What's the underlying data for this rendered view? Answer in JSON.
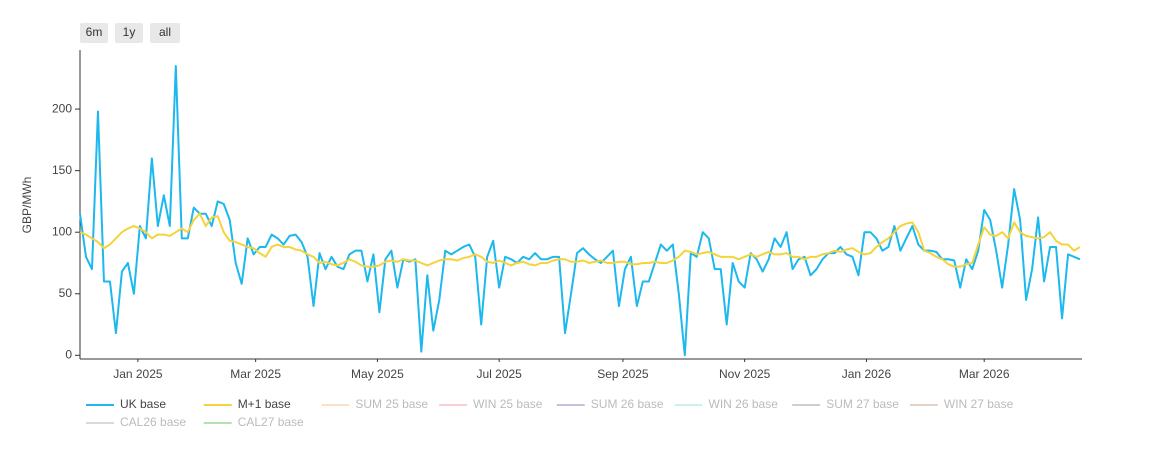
{
  "chart_data": {
    "type": "line",
    "range_buttons": [
      "6m",
      "1y",
      "all"
    ],
    "ylabel": "GBP/MWh",
    "xlim": [
      "2024-12-03",
      "2026-04-19"
    ],
    "xticks": [
      {
        "value": "2025-01-01",
        "label": "Jan 2025"
      },
      {
        "value": "2025-03-01",
        "label": "Mar 2025"
      },
      {
        "value": "2025-05-01",
        "label": "May 2025"
      },
      {
        "value": "2025-07-01",
        "label": "Jul 2025"
      },
      {
        "value": "2025-09-01",
        "label": "Sep 2025"
      },
      {
        "value": "2025-11-01",
        "label": "Nov 2025"
      },
      {
        "value": "2026-01-01",
        "label": "Jan 2026"
      },
      {
        "value": "2026-03-01",
        "label": "Mar 2026"
      }
    ],
    "ylim": [
      -3,
      248
    ],
    "yticks": [
      0,
      50,
      100,
      150,
      200
    ],
    "grid": false,
    "legend": "bottom",
    "x": [
      "2024-12-03",
      "2024-12-06",
      "2024-12-09",
      "2024-12-12",
      "2024-12-15",
      "2024-12-18",
      "2024-12-21",
      "2024-12-24",
      "2024-12-27",
      "2024-12-30",
      "2025-01-02",
      "2025-01-05",
      "2025-01-08",
      "2025-01-11",
      "2025-01-14",
      "2025-01-17",
      "2025-01-20",
      "2025-01-23",
      "2025-01-26",
      "2025-01-29",
      "2025-02-01",
      "2025-02-04",
      "2025-02-07",
      "2025-02-10",
      "2025-02-13",
      "2025-02-16",
      "2025-02-19",
      "2025-02-22",
      "2025-02-25",
      "2025-02-28",
      "2025-03-03",
      "2025-03-06",
      "2025-03-09",
      "2025-03-12",
      "2025-03-15",
      "2025-03-18",
      "2025-03-21",
      "2025-03-24",
      "2025-03-27",
      "2025-03-30",
      "2025-04-02",
      "2025-04-05",
      "2025-04-08",
      "2025-04-11",
      "2025-04-14",
      "2025-04-17",
      "2025-04-20",
      "2025-04-23",
      "2025-04-26",
      "2025-04-29",
      "2025-05-02",
      "2025-05-05",
      "2025-05-08",
      "2025-05-11",
      "2025-05-14",
      "2025-05-17",
      "2025-05-20",
      "2025-05-23",
      "2025-05-26",
      "2025-05-29",
      "2025-06-01",
      "2025-06-04",
      "2025-06-07",
      "2025-06-10",
      "2025-06-13",
      "2025-06-16",
      "2025-06-19",
      "2025-06-22",
      "2025-06-25",
      "2025-06-28",
      "2025-07-01",
      "2025-07-04",
      "2025-07-07",
      "2025-07-10",
      "2025-07-13",
      "2025-07-16",
      "2025-07-19",
      "2025-07-22",
      "2025-07-25",
      "2025-07-28",
      "2025-07-31",
      "2025-08-03",
      "2025-08-06",
      "2025-08-09",
      "2025-08-12",
      "2025-08-15",
      "2025-08-18",
      "2025-08-21",
      "2025-08-24",
      "2025-08-27",
      "2025-08-30",
      "2025-09-02",
      "2025-09-05",
      "2025-09-08",
      "2025-09-11",
      "2025-09-14",
      "2025-09-17",
      "2025-09-20",
      "2025-09-23",
      "2025-09-26",
      "2025-09-29",
      "2025-10-02",
      "2025-10-05",
      "2025-10-08",
      "2025-10-11",
      "2025-10-14",
      "2025-10-17",
      "2025-10-20",
      "2025-10-23",
      "2025-10-26",
      "2025-10-29",
      "2025-11-01",
      "2025-11-04",
      "2025-11-07",
      "2025-11-10",
      "2025-11-13",
      "2025-11-16",
      "2025-11-19",
      "2025-11-22",
      "2025-11-25",
      "2025-11-28",
      "2025-12-01",
      "2025-12-04",
      "2025-12-07",
      "2025-12-10",
      "2025-12-13",
      "2025-12-16",
      "2025-12-19",
      "2025-12-22",
      "2025-12-25",
      "2025-12-28",
      "2025-12-31",
      "2026-01-03",
      "2026-01-06",
      "2026-01-09",
      "2026-01-12",
      "2026-01-15",
      "2026-01-18",
      "2026-01-21",
      "2026-01-24",
      "2026-01-27",
      "2026-01-30",
      "2026-02-02",
      "2026-02-05",
      "2026-02-08",
      "2026-02-11",
      "2026-02-14",
      "2026-02-17",
      "2026-02-20",
      "2026-02-23",
      "2026-02-26",
      "2026-03-01",
      "2026-03-04",
      "2026-03-07",
      "2026-03-10",
      "2026-03-13",
      "2026-03-16",
      "2026-03-19",
      "2026-03-22",
      "2026-03-25",
      "2026-03-28",
      "2026-03-31",
      "2026-04-03",
      "2026-04-06",
      "2026-04-09",
      "2026-04-12",
      "2026-04-15",
      "2026-04-18"
    ],
    "series": [
      {
        "name": "UK base",
        "color": "#1cb8ee",
        "values": [
          115,
          80,
          70,
          198,
          60,
          60,
          18,
          68,
          75,
          50,
          105,
          95,
          160,
          105,
          130,
          105,
          235,
          95,
          95,
          120,
          115,
          115,
          105,
          125,
          123,
          110,
          75,
          58,
          95,
          82,
          88,
          88,
          98,
          95,
          90,
          97,
          98,
          92,
          80,
          40,
          83,
          70,
          80,
          72,
          70,
          82,
          85,
          85,
          60,
          82,
          35,
          78,
          85,
          55,
          78,
          76,
          78,
          3,
          65,
          20,
          45,
          85,
          82,
          85,
          88,
          90,
          80,
          25,
          80,
          93,
          55,
          80,
          78,
          75,
          80,
          78,
          83,
          78,
          78,
          80,
          80,
          18,
          50,
          83,
          87,
          82,
          78,
          75,
          80,
          85,
          40,
          70,
          80,
          40,
          60,
          60,
          75,
          90,
          85,
          90,
          50,
          0,
          83,
          80,
          100,
          95,
          70,
          70,
          25,
          75,
          60,
          55,
          83,
          78,
          68,
          78,
          95,
          88,
          100,
          70,
          78,
          80,
          65,
          70,
          78,
          83,
          83,
          88,
          82,
          80,
          65,
          100,
          100,
          95,
          85,
          88,
          105,
          85,
          95,
          105,
          90,
          85,
          85,
          84,
          78,
          78,
          77,
          55,
          78,
          70,
          85,
          118,
          110,
          85,
          55,
          90,
          135,
          110,
          45,
          70,
          112,
          60,
          88,
          88,
          30,
          82,
          80,
          78
        ]
      },
      {
        "name": "M+1 base",
        "color": "#f5d33c",
        "values": [
          100,
          98,
          95,
          92,
          87,
          90,
          95,
          100,
          103,
          105,
          103,
          100,
          95,
          98,
          98,
          97,
          100,
          103,
          100,
          110,
          115,
          105,
          112,
          113,
          100,
          93,
          92,
          90,
          88,
          87,
          83,
          80,
          88,
          90,
          88,
          88,
          86,
          85,
          82,
          80,
          75,
          76,
          74,
          73,
          75,
          78,
          76,
          73,
          72,
          72,
          73,
          76,
          77,
          76,
          78,
          77,
          77,
          75,
          73,
          75,
          77,
          78,
          78,
          77,
          79,
          80,
          82,
          80,
          76,
          75,
          77,
          75,
          73,
          75,
          76,
          74,
          73,
          75,
          75,
          77,
          78,
          78,
          76,
          76,
          77,
          75,
          76,
          77,
          75,
          75,
          76,
          76,
          74,
          74,
          75,
          75,
          76,
          75,
          75,
          77,
          80,
          85,
          84,
          82,
          83,
          84,
          82,
          80,
          80,
          80,
          78,
          80,
          82,
          80,
          82,
          84,
          82,
          82,
          83,
          80,
          80,
          78,
          80,
          80,
          82,
          83,
          85,
          84,
          86,
          87,
          84,
          82,
          83,
          88,
          92,
          95,
          100,
          105,
          107,
          108,
          100,
          85,
          83,
          80,
          78,
          74,
          72,
          72,
          74,
          75,
          90,
          104,
          98,
          97,
          100,
          95,
          108,
          100,
          97,
          96,
          95,
          96,
          100,
          93,
          90,
          90,
          85,
          88
        ]
      },
      {
        "name": "SUM 25 base",
        "color": "#f7c98a",
        "visible": "legendonly"
      },
      {
        "name": "WIN 25 base",
        "color": "#f2a0a6",
        "visible": "legendonly"
      },
      {
        "name": "SUM 26 base",
        "color": "#8a87b8",
        "visible": "legendonly"
      },
      {
        "name": "WIN 26 base",
        "color": "#9ae6e0",
        "visible": "legendonly"
      },
      {
        "name": "SUM 27 base",
        "color": "#a0a0a0",
        "visible": "legendonly"
      },
      {
        "name": "WIN 27 base",
        "color": "#c9a58f",
        "visible": "legendonly"
      },
      {
        "name": "CAL26 base",
        "color": "#b0b4b8",
        "visible": "legendonly"
      },
      {
        "name": "CAL27 base",
        "color": "#6cc36c",
        "visible": "legendonly"
      }
    ]
  }
}
